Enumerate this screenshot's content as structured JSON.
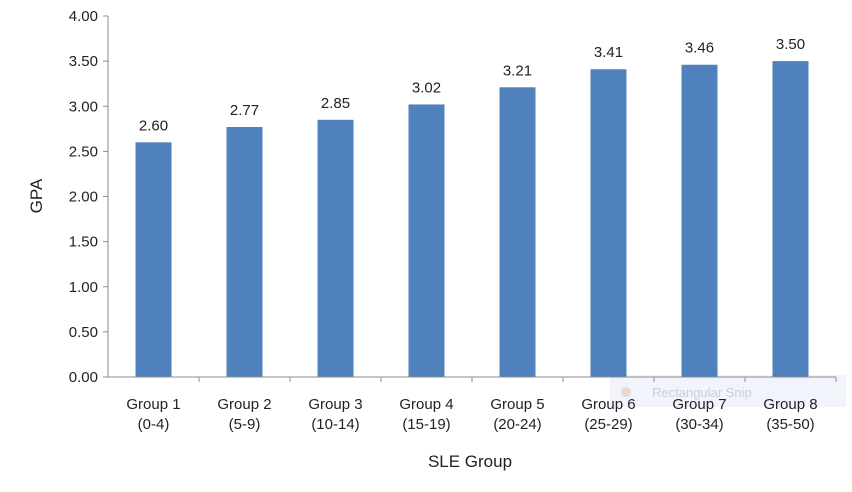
{
  "chart_data": {
    "type": "bar",
    "title": "",
    "xlabel": "SLE Group",
    "ylabel": "GPA",
    "categories": [
      [
        "Group 1",
        "(0-4)"
      ],
      [
        "Group 2",
        "(5-9)"
      ],
      [
        "Group 3",
        "(10-14)"
      ],
      [
        "Group 4",
        "(15-19)"
      ],
      [
        "Group 5",
        "(20-24)"
      ],
      [
        "Group 6",
        "(25-29)"
      ],
      [
        "Group 7",
        "(30-34)"
      ],
      [
        "Group 8",
        "(35-50)"
      ]
    ],
    "values": [
      2.6,
      2.77,
      2.85,
      3.02,
      3.21,
      3.41,
      3.46,
      3.5
    ],
    "data_labels": [
      "2.60",
      "2.77",
      "2.85",
      "3.02",
      "3.21",
      "3.41",
      "3.46",
      "3.50"
    ],
    "ylim": [
      0,
      4
    ],
    "yticks": [
      "0.00",
      "0.50",
      "1.00",
      "1.50",
      "2.00",
      "2.50",
      "3.00",
      "3.50",
      "4.00"
    ],
    "grid": false,
    "legend": "none",
    "bar_color": "#4f81bd"
  },
  "watermark": {
    "text": "Rectangular Snip",
    "icon": "snip-icon"
  }
}
